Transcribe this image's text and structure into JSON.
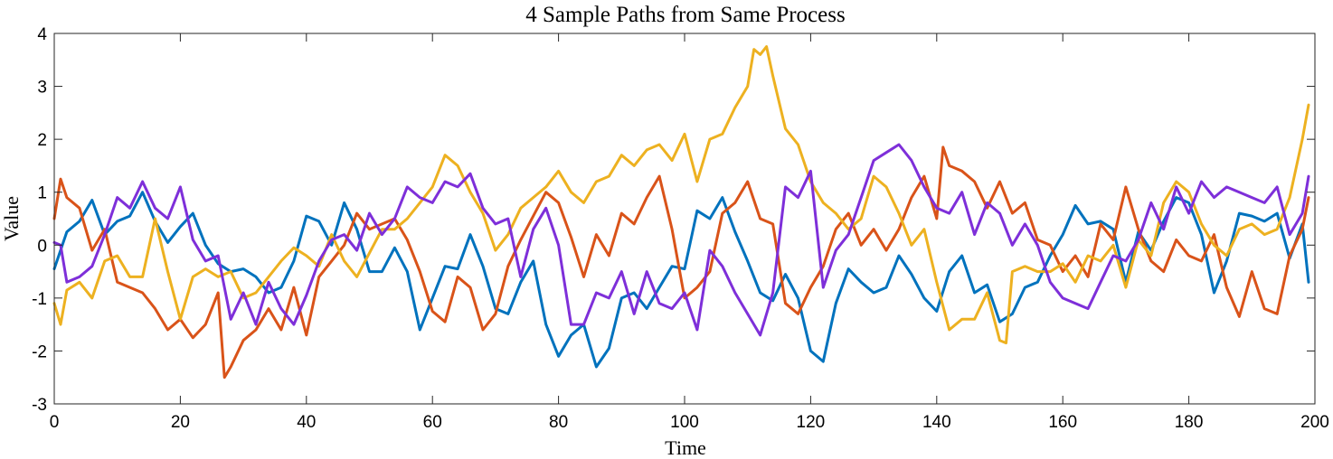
{
  "chart_data": {
    "type": "line",
    "title": "4 Sample Paths from Same Process",
    "xlabel": "Time",
    "ylabel": "Value",
    "xlim": [
      0,
      200
    ],
    "ylim": [
      -3,
      4
    ],
    "xticks": [
      0,
      20,
      40,
      60,
      80,
      100,
      120,
      140,
      160,
      180,
      200
    ],
    "yticks": [
      -3,
      -2,
      -1,
      0,
      1,
      2,
      3,
      4
    ],
    "grid": false,
    "box": true,
    "series": [
      {
        "color": "#0072BD",
        "x": [
          0,
          2,
          4,
          6,
          8,
          10,
          12,
          14,
          16,
          18,
          20,
          22,
          24,
          26,
          28,
          30,
          32,
          34,
          36,
          38,
          40,
          42,
          44,
          46,
          48,
          50,
          52,
          54,
          56,
          58,
          60,
          62,
          64,
          66,
          68,
          70,
          72,
          74,
          76,
          78,
          80,
          82,
          84,
          86,
          88,
          90,
          92,
          94,
          96,
          98,
          100,
          102,
          104,
          106,
          108,
          110,
          112,
          114,
          116,
          118,
          120,
          122,
          124,
          126,
          128,
          130,
          132,
          134,
          136,
          138,
          140,
          142,
          144,
          146,
          148,
          150,
          152,
          154,
          156,
          158,
          160,
          162,
          164,
          166,
          168,
          170,
          172,
          174,
          176,
          178,
          180,
          182,
          184,
          186,
          188,
          190,
          192,
          194,
          196,
          198,
          199
        ],
        "values": [
          -0.45,
          0.25,
          0.45,
          0.85,
          0.2,
          0.45,
          0.55,
          1.0,
          0.45,
          0.05,
          0.35,
          0.6,
          0.0,
          -0.35,
          -0.5,
          -0.45,
          -0.6,
          -0.9,
          -0.8,
          -0.3,
          0.55,
          0.45,
          0.0,
          0.8,
          0.3,
          -0.5,
          -0.5,
          -0.05,
          -0.5,
          -1.6,
          -1.0,
          -0.4,
          -0.45,
          0.2,
          -0.4,
          -1.2,
          -1.3,
          -0.7,
          -0.3,
          -1.5,
          -2.1,
          -1.7,
          -1.5,
          -2.3,
          -1.95,
          -1.0,
          -0.9,
          -1.2,
          -0.8,
          -0.4,
          -0.45,
          0.65,
          0.5,
          0.9,
          0.25,
          -0.3,
          -0.9,
          -1.05,
          -0.55,
          -1.0,
          -2.0,
          -2.2,
          -1.1,
          -0.45,
          -0.7,
          -0.9,
          -0.8,
          -0.2,
          -0.55,
          -1.0,
          -1.25,
          -0.5,
          -0.2,
          -0.9,
          -0.75,
          -1.45,
          -1.3,
          -0.8,
          -0.7,
          -0.2,
          0.2,
          0.75,
          0.4,
          0.45,
          0.3,
          -0.7,
          0.25,
          -0.1,
          0.45,
          0.9,
          0.8,
          0.2,
          -0.9,
          -0.3,
          0.6,
          0.55,
          0.45,
          0.6,
          -0.25,
          0.4,
          -0.7
        ]
      },
      {
        "color": "#D95319",
        "x": [
          0,
          1,
          2,
          4,
          6,
          8,
          10,
          12,
          14,
          16,
          18,
          20,
          22,
          24,
          26,
          27,
          28,
          30,
          32,
          34,
          36,
          38,
          40,
          42,
          44,
          46,
          48,
          50,
          52,
          54,
          56,
          58,
          60,
          62,
          64,
          66,
          68,
          70,
          72,
          74,
          76,
          78,
          80,
          82,
          84,
          86,
          88,
          90,
          92,
          94,
          96,
          98,
          100,
          102,
          104,
          106,
          108,
          110,
          112,
          114,
          116,
          118,
          120,
          122,
          124,
          126,
          128,
          130,
          132,
          134,
          136,
          138,
          140,
          141,
          142,
          144,
          146,
          148,
          150,
          152,
          154,
          156,
          158,
          160,
          162,
          164,
          166,
          168,
          170,
          172,
          174,
          176,
          178,
          180,
          182,
          184,
          186,
          188,
          190,
          192,
          194,
          196,
          198,
          199
        ],
        "values": [
          0.5,
          1.25,
          0.9,
          0.7,
          -0.1,
          0.3,
          -0.7,
          -0.8,
          -0.9,
          -1.2,
          -1.6,
          -1.4,
          -1.75,
          -1.5,
          -0.9,
          -2.5,
          -2.3,
          -1.8,
          -1.6,
          -1.2,
          -1.6,
          -0.8,
          -1.7,
          -0.6,
          -0.3,
          0.0,
          0.6,
          0.3,
          0.4,
          0.5,
          0.1,
          -0.5,
          -1.25,
          -1.45,
          -0.6,
          -0.8,
          -1.6,
          -1.3,
          -0.4,
          0.1,
          0.55,
          1.0,
          0.8,
          0.15,
          -0.6,
          0.2,
          -0.2,
          0.6,
          0.4,
          0.9,
          1.3,
          0.3,
          -1.0,
          -0.8,
          -0.5,
          0.6,
          0.8,
          1.2,
          0.5,
          0.4,
          -1.1,
          -1.3,
          -0.8,
          -0.4,
          0.3,
          0.6,
          0.0,
          0.3,
          -0.1,
          0.3,
          0.9,
          1.3,
          0.5,
          1.85,
          1.5,
          1.4,
          1.2,
          0.7,
          1.2,
          0.6,
          0.8,
          0.1,
          0.0,
          -0.5,
          -0.2,
          -0.6,
          0.4,
          0.1,
          1.1,
          0.3,
          -0.3,
          -0.5,
          0.1,
          -0.2,
          -0.3,
          0.2,
          -0.8,
          -1.35,
          -0.5,
          -1.2,
          -1.3,
          -0.2,
          0.3,
          0.9
        ]
      },
      {
        "color": "#EDB120",
        "x": [
          0,
          1,
          2,
          4,
          6,
          8,
          10,
          12,
          14,
          16,
          18,
          20,
          22,
          24,
          26,
          28,
          30,
          32,
          34,
          36,
          38,
          40,
          42,
          44,
          46,
          48,
          50,
          52,
          54,
          56,
          58,
          60,
          62,
          64,
          66,
          68,
          70,
          72,
          74,
          76,
          78,
          80,
          82,
          84,
          86,
          88,
          90,
          92,
          94,
          96,
          98,
          100,
          102,
          104,
          106,
          108,
          110,
          111,
          112,
          113,
          114,
          116,
          118,
          120,
          122,
          124,
          126,
          128,
          130,
          132,
          134,
          136,
          138,
          140,
          142,
          144,
          146,
          148,
          150,
          151,
          152,
          154,
          156,
          158,
          160,
          162,
          164,
          166,
          168,
          170,
          172,
          174,
          176,
          178,
          180,
          182,
          184,
          186,
          188,
          190,
          192,
          194,
          196,
          198,
          199
        ],
        "values": [
          -1.1,
          -1.5,
          -0.85,
          -0.7,
          -1.0,
          -0.3,
          -0.2,
          -0.6,
          -0.6,
          0.5,
          -0.5,
          -1.4,
          -0.6,
          -0.45,
          -0.6,
          -0.5,
          -1.0,
          -0.9,
          -0.6,
          -0.3,
          -0.05,
          -0.2,
          -0.4,
          0.2,
          -0.3,
          -0.6,
          -0.15,
          0.3,
          0.3,
          0.5,
          0.8,
          1.1,
          1.7,
          1.5,
          1.0,
          0.6,
          -0.1,
          0.2,
          0.7,
          0.9,
          1.1,
          1.4,
          1.0,
          0.8,
          1.2,
          1.3,
          1.7,
          1.5,
          1.8,
          1.9,
          1.6,
          2.1,
          1.2,
          2.0,
          2.1,
          2.6,
          3.0,
          3.7,
          3.6,
          3.75,
          3.2,
          2.2,
          1.9,
          1.2,
          0.8,
          0.6,
          0.3,
          0.5,
          1.3,
          1.1,
          0.6,
          0.0,
          0.3,
          -0.7,
          -1.6,
          -1.4,
          -1.4,
          -0.9,
          -1.8,
          -1.85,
          -0.5,
          -0.4,
          -0.5,
          -0.5,
          -0.35,
          -0.7,
          -0.2,
          -0.3,
          0.0,
          -0.8,
          0.1,
          -0.2,
          0.8,
          1.2,
          1.0,
          0.4,
          0.0,
          -0.2,
          0.3,
          0.4,
          0.2,
          0.3,
          0.9,
          2.0,
          2.65
        ]
      },
      {
        "color": "#7E2FD9",
        "x": [
          0,
          1,
          2,
          4,
          6,
          8,
          10,
          12,
          14,
          16,
          18,
          20,
          22,
          24,
          26,
          28,
          30,
          32,
          34,
          36,
          38,
          40,
          42,
          44,
          46,
          48,
          50,
          52,
          54,
          56,
          58,
          60,
          62,
          64,
          66,
          68,
          70,
          72,
          74,
          76,
          78,
          80,
          82,
          84,
          86,
          88,
          90,
          92,
          94,
          96,
          98,
          100,
          102,
          104,
          106,
          108,
          110,
          112,
          114,
          116,
          118,
          120,
          122,
          124,
          126,
          128,
          130,
          132,
          134,
          136,
          138,
          140,
          142,
          144,
          146,
          148,
          150,
          152,
          154,
          156,
          158,
          160,
          162,
          164,
          166,
          168,
          170,
          172,
          174,
          176,
          178,
          180,
          182,
          184,
          186,
          188,
          190,
          192,
          194,
          196,
          198,
          199
        ],
        "values": [
          0.05,
          0.0,
          -0.7,
          -0.6,
          -0.4,
          0.2,
          0.9,
          0.7,
          1.2,
          0.7,
          0.5,
          1.1,
          0.1,
          -0.3,
          -0.2,
          -1.4,
          -0.9,
          -1.5,
          -0.7,
          -1.2,
          -1.5,
          -0.95,
          -0.3,
          0.1,
          0.2,
          -0.1,
          0.6,
          0.2,
          0.5,
          1.1,
          0.9,
          0.8,
          1.2,
          1.1,
          1.35,
          0.7,
          0.4,
          0.5,
          -0.6,
          0.3,
          0.7,
          0.0,
          -1.5,
          -1.5,
          -0.9,
          -1.0,
          -0.5,
          -1.3,
          -0.5,
          -1.1,
          -1.2,
          -0.9,
          -1.6,
          -0.1,
          -0.4,
          -0.9,
          -1.3,
          -1.7,
          -0.9,
          1.1,
          0.9,
          1.4,
          -0.8,
          -0.1,
          0.2,
          0.9,
          1.6,
          1.75,
          1.9,
          1.6,
          1.1,
          0.7,
          0.6,
          1.0,
          0.2,
          0.8,
          0.6,
          0.0,
          0.4,
          0.0,
          -0.7,
          -1.0,
          -1.1,
          -1.2,
          -0.7,
          -0.2,
          -0.3,
          0.1,
          0.8,
          0.3,
          1.1,
          0.6,
          1.2,
          0.9,
          1.1,
          1.0,
          0.9,
          0.8,
          1.1,
          0.2,
          0.6,
          1.3
        ]
      }
    ]
  }
}
